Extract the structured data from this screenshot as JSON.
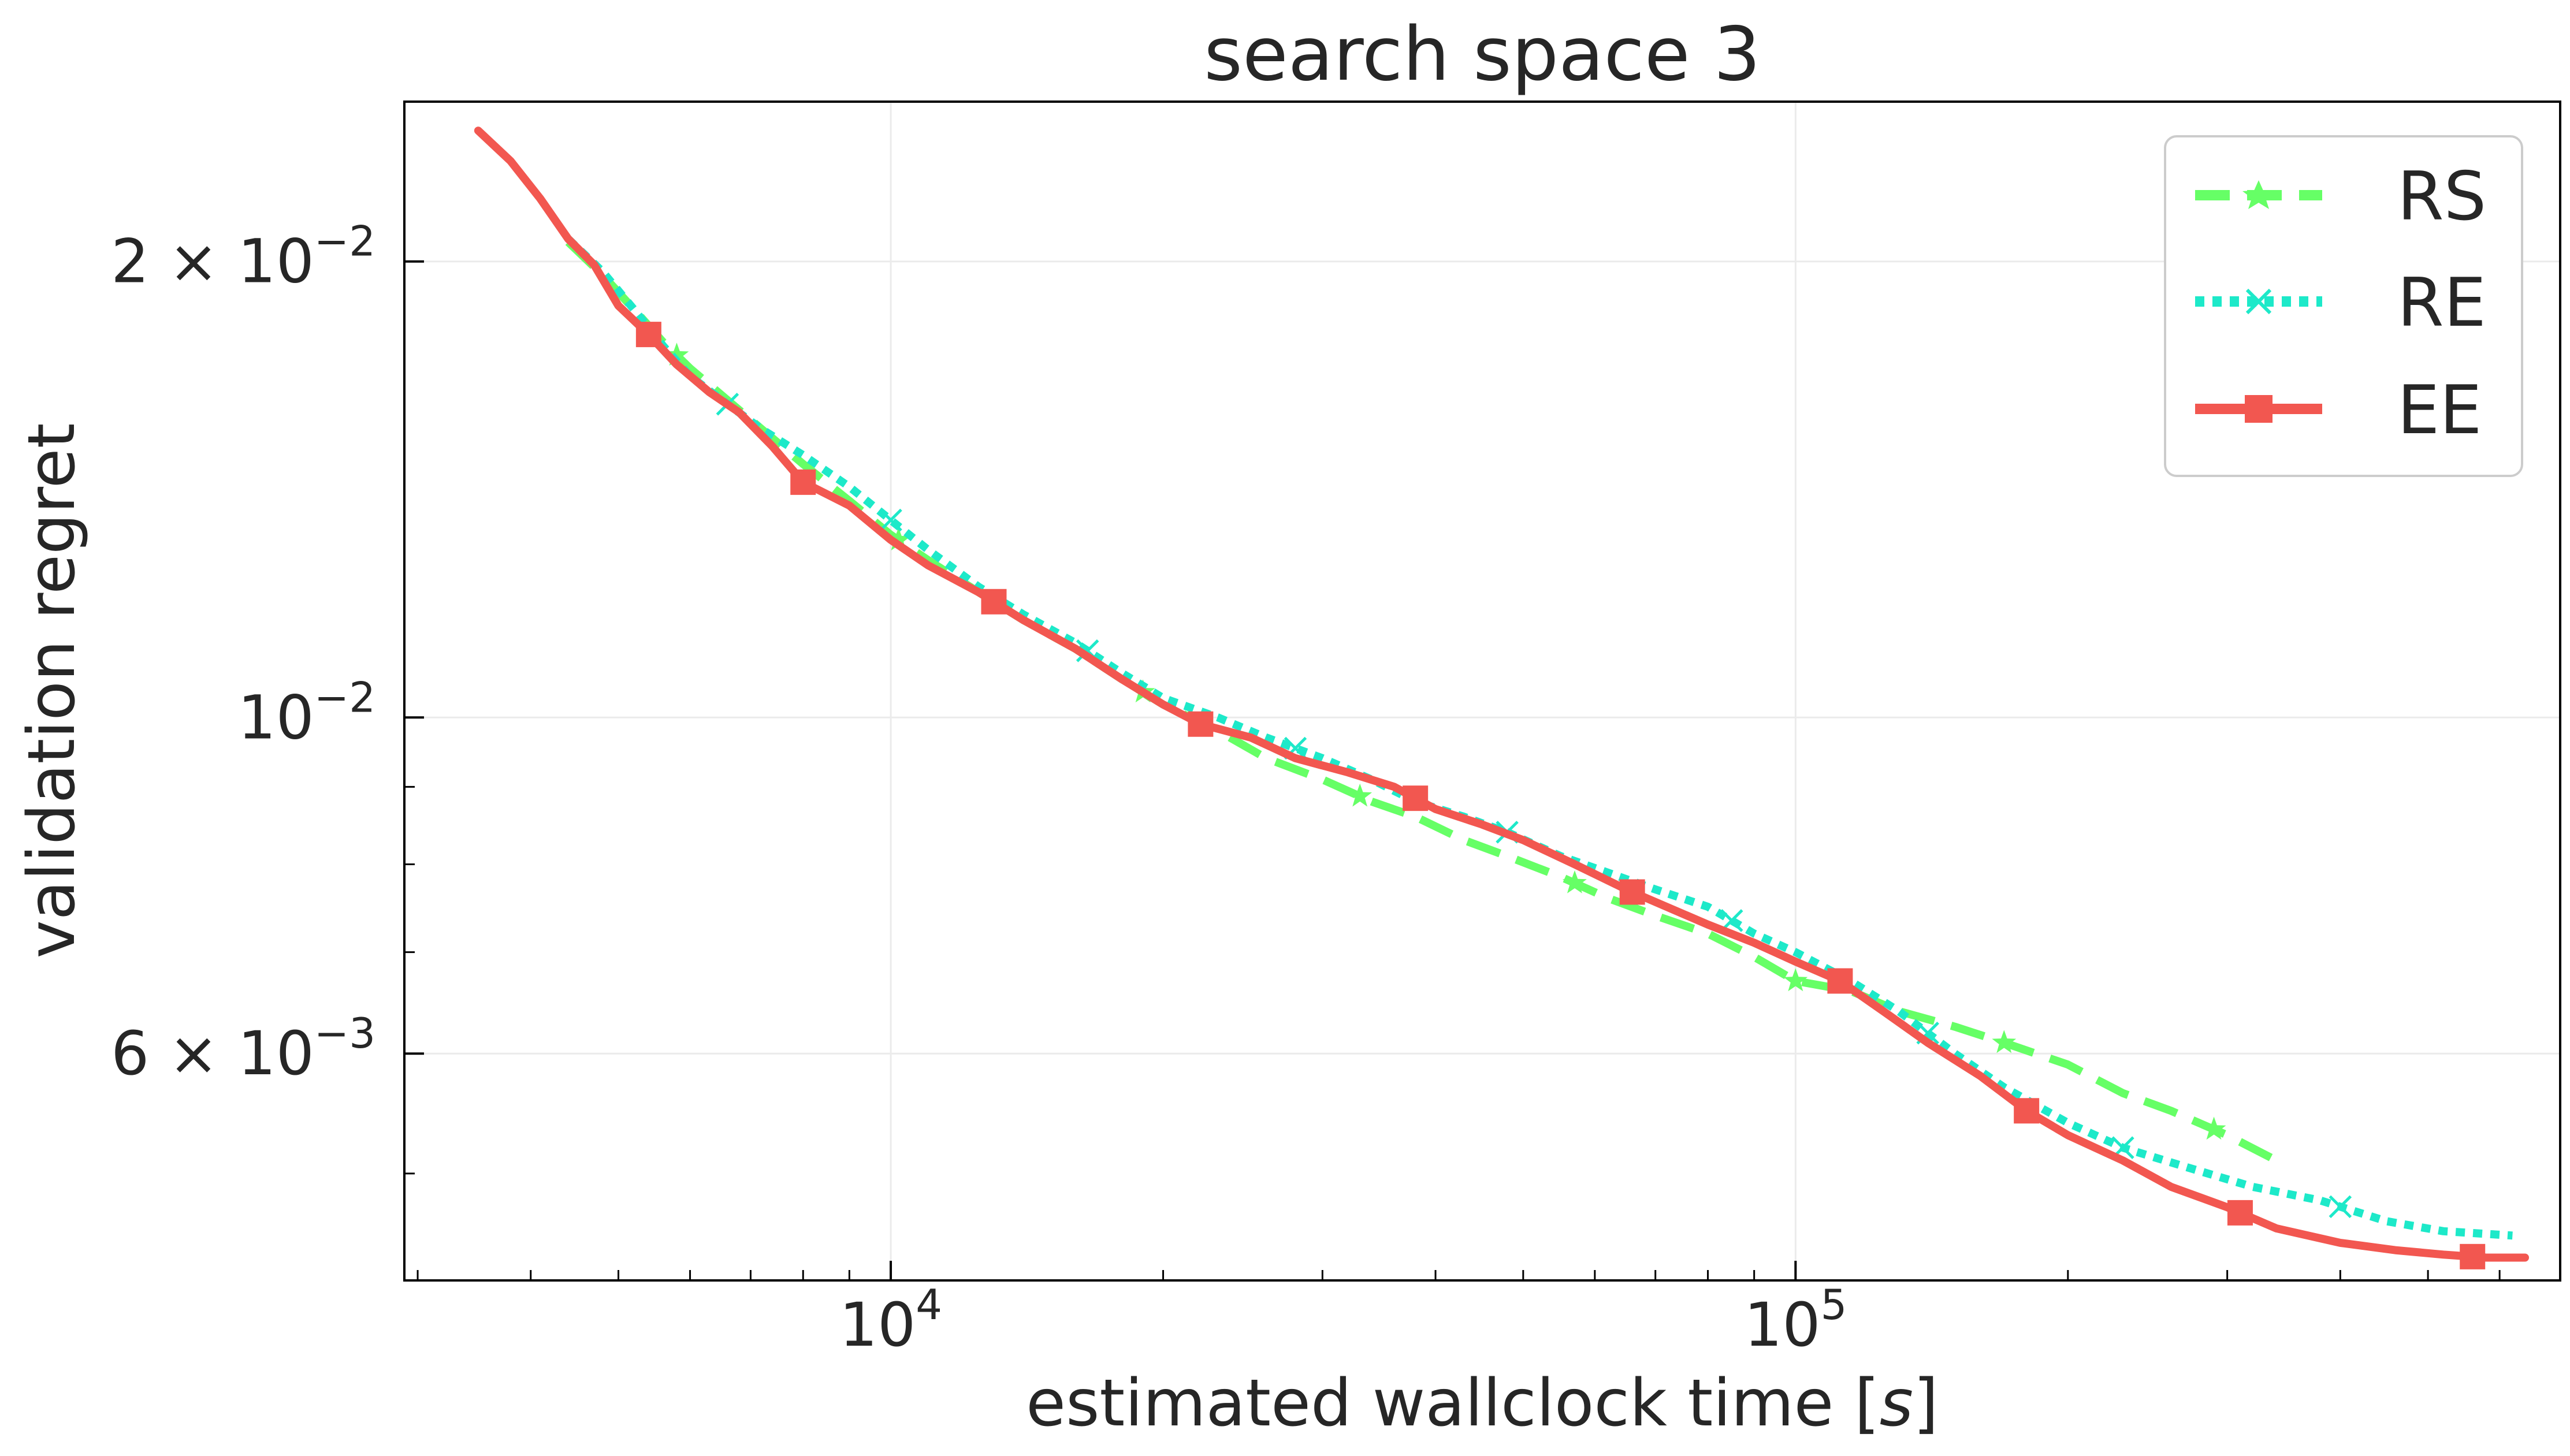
{
  "chart_data": {
    "type": "line",
    "title": "search space 3",
    "xlabel_text": "estimated wallclock time [",
    "xlabel_unit": "s",
    "xlabel_close": "]",
    "ylabel": "validation regret",
    "xscale": "log",
    "yscale": "log",
    "xlim": [
      2900,
      700000
    ],
    "ylim": [
      0.00425,
      0.0255
    ],
    "grid": true,
    "legend_position": "top-right",
    "x_ticks": [
      {
        "value": 10000,
        "base": "10",
        "exp": "4"
      },
      {
        "value": 100000,
        "base": "10",
        "exp": "5"
      }
    ],
    "y_ticks": [
      {
        "value": 0.02,
        "mant": "2 × 10",
        "exp": "−2"
      },
      {
        "value": 0.01,
        "mant": "10",
        "exp": "−2"
      },
      {
        "value": 0.006,
        "mant": "6 × 10",
        "exp": "−3"
      }
    ],
    "x_minor_ticks": [
      3000,
      4000,
      5000,
      6000,
      7000,
      8000,
      9000,
      20000,
      30000,
      40000,
      50000,
      60000,
      70000,
      80000,
      90000,
      200000,
      300000,
      400000,
      500000,
      600000
    ],
    "y_minor_ticks": [
      0.005,
      0.007,
      0.008,
      0.009
    ],
    "series": [
      {
        "name": "RS",
        "color": "#66ff66",
        "dash": "dashed",
        "marker": "star",
        "x": [
          4400,
          4800,
          5200,
          5600,
          6000,
          6600,
          7200,
          8000,
          9000,
          10000,
          11000,
          12500,
          14000,
          16000,
          18000,
          20000,
          23000,
          26000,
          30000,
          34000,
          38000,
          43000,
          48000,
          55000,
          62000,
          70000,
          80000,
          90000,
          100000,
          115000,
          130000,
          150000,
          170000,
          200000,
          230000,
          260000,
          300000,
          340000
        ],
        "y": [
          0.0206,
          0.0196,
          0.0186,
          0.0177,
          0.017,
          0.0162,
          0.0155,
          0.0147,
          0.0139,
          0.0132,
          0.0127,
          0.0121,
          0.0116,
          0.0111,
          0.0106,
          0.0102,
          0.0098,
          0.0094,
          0.0091,
          0.0088,
          0.0086,
          0.0083,
          0.0081,
          0.00785,
          0.0076,
          0.0074,
          0.0072,
          0.00695,
          0.0067,
          0.0066,
          0.0064,
          0.00625,
          0.0061,
          0.0059,
          0.00565,
          0.0055,
          0.0053,
          0.0051
        ],
        "marker_x": [
          5800,
          10200,
          19000,
          33000,
          57000,
          100000,
          170000,
          290000
        ]
      },
      {
        "name": "RE",
        "color": "#1de9c9",
        "dash": "dotted",
        "marker": "x",
        "x": [
          4400,
          4800,
          5200,
          5600,
          6000,
          6600,
          7200,
          8000,
          9000,
          10000,
          11000,
          12500,
          14000,
          16000,
          18000,
          20000,
          23000,
          26000,
          30000,
          34000,
          38000,
          43000,
          48000,
          55000,
          62000,
          70000,
          80000,
          90000,
          100000,
          115000,
          130000,
          150000,
          170000,
          200000,
          230000,
          270000,
          320000,
          380000,
          450000,
          520000,
          620000
        ],
        "y": [
          0.0207,
          0.0197,
          0.0186,
          0.0176,
          0.0168,
          0.0161,
          0.0155,
          0.0149,
          0.0142,
          0.0135,
          0.0129,
          0.0122,
          0.0117,
          0.0112,
          0.0107,
          0.0103,
          0.01,
          0.0097,
          0.0094,
          0.0091,
          0.0088,
          0.0086,
          0.0084,
          0.0081,
          0.0079,
          0.0077,
          0.0075,
          0.0072,
          0.007,
          0.0067,
          0.0064,
          0.006,
          0.0057,
          0.0054,
          0.0052,
          0.00505,
          0.0049,
          0.0048,
          0.00465,
          0.00458,
          0.00455
        ],
        "marker_x": [
          6600,
          10000,
          16500,
          28000,
          48000,
          85000,
          140000,
          230000,
          400000
        ]
      },
      {
        "name": "EE",
        "color": "#f25750",
        "dash": "solid",
        "marker": "square",
        "x": [
          3500,
          3800,
          4100,
          4400,
          4700,
          5000,
          5400,
          5800,
          6300,
          6800,
          7400,
          8000,
          9000,
          10000,
          11000,
          12500,
          14000,
          16000,
          18000,
          20000,
          22000,
          25000,
          28000,
          32000,
          36000,
          40000,
          45000,
          50000,
          57000,
          65000,
          72000,
          80000,
          90000,
          100000,
          112000,
          125000,
          140000,
          160000,
          180000,
          200000,
          230000,
          260000,
          300000,
          340000,
          400000,
          460000,
          520000,
          580000,
          640000
        ],
        "y": [
          0.0244,
          0.0233,
          0.022,
          0.0207,
          0.0199,
          0.0187,
          0.0179,
          0.0171,
          0.0164,
          0.0159,
          0.0151,
          0.0143,
          0.0138,
          0.0131,
          0.0126,
          0.0121,
          0.0116,
          0.0111,
          0.0106,
          0.0102,
          0.0099,
          0.0097,
          0.0094,
          0.0092,
          0.009,
          0.0087,
          0.0085,
          0.0083,
          0.008,
          0.0077,
          0.0075,
          0.0073,
          0.0071,
          0.0069,
          0.0067,
          0.0064,
          0.0061,
          0.0058,
          0.0055,
          0.0053,
          0.0051,
          0.0049,
          0.00475,
          0.0046,
          0.0045,
          0.00445,
          0.00442,
          0.0044,
          0.0044
        ],
        "marker_x": [
          5400,
          8000,
          13000,
          22000,
          38000,
          66000,
          112000,
          180000,
          310000,
          560000
        ]
      }
    ]
  }
}
